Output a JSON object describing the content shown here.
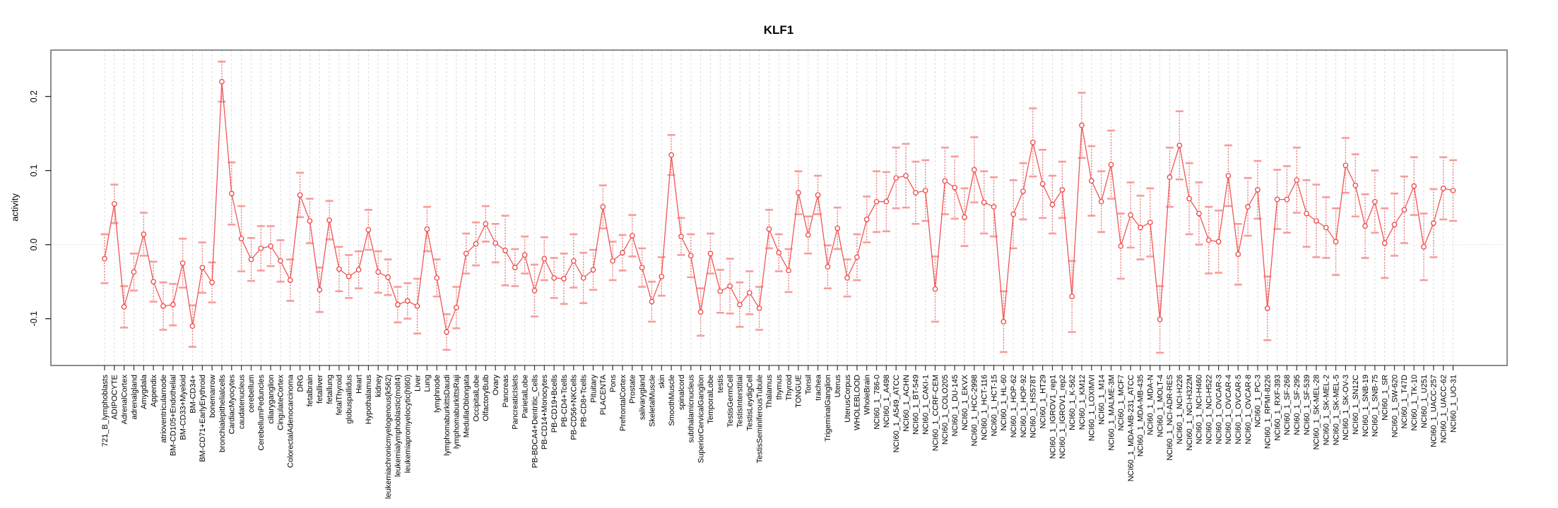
{
  "page": {
    "background": "#ffffff"
  },
  "chart_data": {
    "type": "line",
    "title": "KLF1",
    "xlabel": "",
    "ylabel": "activity",
    "ylim": [
      -0.163,
      0.263
    ],
    "yticks": [
      -0.1,
      0.0,
      0.1,
      0.2
    ],
    "ytick_labels": [
      "-0.1",
      "0.0",
      "0.1",
      "0.2"
    ],
    "grid": "vertical dashed line at every category; dotted horizontal line at y=0",
    "legend": "none",
    "marker": "open-circle",
    "series_color": "#f25555",
    "errorbar_color": "#f79c9c",
    "box_color": "#7f7f7f",
    "categories": [
      "721_B_lymphoblasts",
      "ADIPOCYTE",
      "AdrenalCortex",
      "adrenalgland",
      "Amygdala",
      "Appendix",
      "atrioventricularnode",
      "BM-CD105+Endothelial",
      "BM-CD33+Myeloid",
      "BM-CD34+",
      "BM-CD71+EarlyErythroid",
      "bonemarrow",
      "bronchialepithelialcells",
      "CardiacMyocytes",
      "caudatenucleus",
      "cerebellum",
      "CerebellumPeduncles",
      "ciliaryganglion",
      "CingulateCortex",
      "ColorectalAdenocarcinoma",
      "DRG",
      "fetalbrain",
      "fetalliver",
      "fetallung",
      "fetalThyroid",
      "globuspallidus",
      "Heart",
      "Hypothalamus",
      "kidney",
      "leukemiachronicmyelogenous(k562)",
      "leukemialymphoblastic(molt4)",
      "leukemiapromyelocytic(hl60)",
      "Liver",
      "Lung",
      "lymphnode",
      "lymphomaburkittsDaudi",
      "lymphomaburkittsRaji",
      "MedullaOblongata",
      "OccipitalLobe",
      "OlfactoryBulb",
      "Ovary",
      "Pancreas",
      "PancreaticIslets",
      "ParietalLobe",
      "PB-BDCA4+Dentritic_Cells",
      "PB-CD14+Monocytes",
      "PB-CD19+Bcells",
      "PB-CD4+Tcells",
      "PB-CD56+NKCells",
      "PB-CD8+Tcells",
      "Pituitary",
      "PLACENTA",
      "Pons",
      "PrefrontalCortex",
      "Prostate",
      "salivarygland",
      "SkeletalMuscle",
      "skin",
      "SmoothMuscle",
      "spinalcord",
      "subthalamicnucleus",
      "SuperiorCervicalGanglion",
      "TemporalLobe",
      "testis",
      "TestisGermCell",
      "TestisInterstitial",
      "TestisLeydigCell",
      "TestisSeminiferousTubule",
      "Thalamus",
      "thymus",
      "Thyroid",
      "TONGUE",
      "Tonsil",
      "trachea",
      "TrigeminalGanglion",
      "Uterus",
      "UterusCorpus",
      "WHOLEBLOOD",
      "WholeBrain",
      "NCI60_1_786-0",
      "NCI60_1_A498",
      "NCI60_1_A549_ATCC",
      "NCI60_1_ACHN",
      "NCI60_1_BT-549",
      "NCI60_1_CAKI-1",
      "NCI60_1_CCRF-CEM",
      "NCI60_1_COLO205",
      "NCI60_1_DU-145",
      "NCI60_1_EKVX",
      "NCI60_1_HCC-2998",
      "NCI60_1_HCT-116",
      "NCI60_1_HCT-15",
      "NCI60_1_HL-60",
      "NCI60_1_HOP-62",
      "NCI60_1_HOP-92",
      "NCI60_1_HS578T",
      "NCI60_1_HT29",
      "NCI60_1_IGROV1_rep1",
      "NCI60_1_IGROV1_rep2",
      "NCI60_1_K-562",
      "NCI60_1_KM12",
      "NCI60_1_LOXIMVI",
      "NCI60_1_M14",
      "NCI60_1_MALME-3M",
      "NCI60_1_MCF7",
      "NCI60_1_MDA-MB-231_ATCC",
      "NCI60_1_MDA-MB-435",
      "NCI60_1_MDA-N",
      "NCI60_1_MOLT-4",
      "NCI60_1_NCI-ADR-RES",
      "NCI60_1_NCI-H226",
      "NCI60_1_NCI-H322M",
      "NCI60_1_NCI-H460",
      "NCI60_1_NCI-H522",
      "NCI60_1_OVCAR-3",
      "NCI60_1_OVCAR-4",
      "NCI60_1_OVCAR-5",
      "NCI60_1_OVCAR-8",
      "NCI60_1_PC-3",
      "NCI60_1_RPMI-8226",
      "NCI60_1_RXF-393",
      "NCI60_1_SF-268",
      "NCI60_1_SF-295",
      "NCI60_1_SF-539",
      "NCI60_1_SK-MEL-28",
      "NCI60_1_SK-MEL-2",
      "NCI60_1_SK-MEL-5",
      "NCI60_1_SK-OV-3",
      "NCI60_1_SN12C",
      "NCI60_1_SNB-19",
      "NCI60_1_SNB-75",
      "NCI60_1_SR",
      "NCI60_1_SW-620",
      "NCI60_1_T47D",
      "NCI60_1_TK-10",
      "NCI60_1_U251",
      "NCI60_1_UACC-257",
      "NCI60_1_UACC-62",
      "NCI60_1_UO-31"
    ],
    "series": [
      {
        "name": "activity",
        "values": [
          -0.019,
          0.055,
          -0.084,
          -0.037,
          0.014,
          -0.05,
          -0.083,
          -0.081,
          -0.025,
          -0.11,
          -0.031,
          -0.051,
          0.22,
          0.069,
          0.008,
          -0.02,
          -0.005,
          -0.002,
          -0.022,
          -0.048,
          0.067,
          0.032,
          -0.061,
          0.033,
          -0.033,
          -0.043,
          -0.034,
          0.02,
          -0.037,
          -0.044,
          -0.081,
          -0.076,
          -0.083,
          0.021,
          -0.045,
          -0.118,
          -0.085,
          -0.012,
          0.001,
          0.028,
          0.002,
          -0.008,
          -0.031,
          -0.014,
          -0.062,
          -0.019,
          -0.045,
          -0.046,
          -0.022,
          -0.045,
          -0.034,
          0.051,
          -0.022,
          -0.011,
          0.012,
          -0.031,
          -0.077,
          -0.043,
          0.121,
          0.011,
          -0.015,
          -0.091,
          -0.012,
          -0.063,
          -0.056,
          -0.081,
          -0.065,
          -0.086,
          0.021,
          -0.011,
          -0.035,
          0.07,
          0.013,
          0.067,
          -0.03,
          0.022,
          -0.045,
          -0.017,
          0.034,
          0.058,
          0.058,
          0.09,
          0.093,
          0.07,
          0.073,
          -0.06,
          0.086,
          0.077,
          0.037,
          0.101,
          0.057,
          0.051,
          -0.104,
          0.041,
          0.072,
          0.138,
          0.082,
          0.054,
          0.074,
          -0.07,
          0.161,
          0.086,
          0.058,
          0.108,
          -0.002,
          0.04,
          0.023,
          0.03,
          -0.101,
          0.091,
          0.134,
          0.062,
          0.042,
          0.006,
          0.004,
          0.093,
          -0.013,
          0.051,
          0.074,
          -0.086,
          0.061,
          0.061,
          0.087,
          0.042,
          0.032,
          0.023,
          0.004,
          0.107,
          0.08,
          0.025,
          0.058,
          0.002,
          0.027,
          0.047,
          0.079,
          -0.003,
          0.029,
          0.076,
          0.073
        ],
        "stderr": [
          0.033,
          0.026,
          0.028,
          0.025,
          0.029,
          0.027,
          0.032,
          0.028,
          0.033,
          0.028,
          0.034,
          0.027,
          0.027,
          0.042,
          0.044,
          0.029,
          0.03,
          0.027,
          0.028,
          0.028,
          0.03,
          0.03,
          0.03,
          0.026,
          0.03,
          0.029,
          0.025,
          0.027,
          0.028,
          0.024,
          0.024,
          0.024,
          0.037,
          0.03,
          0.025,
          0.024,
          0.028,
          0.027,
          0.029,
          0.024,
          0.026,
          0.047,
          0.025,
          0.025,
          0.035,
          0.029,
          0.027,
          0.034,
          0.036,
          0.034,
          0.027,
          0.029,
          0.026,
          0.024,
          0.028,
          0.026,
          0.027,
          0.026,
          0.027,
          0.025,
          0.029,
          0.032,
          0.027,
          0.029,
          0.037,
          0.03,
          0.029,
          0.029,
          0.026,
          0.025,
          0.029,
          0.029,
          0.025,
          0.026,
          0.029,
          0.028,
          0.025,
          0.031,
          0.031,
          0.041,
          0.04,
          0.041,
          0.043,
          0.042,
          0.041,
          0.044,
          0.045,
          0.042,
          0.039,
          0.044,
          0.042,
          0.04,
          0.041,
          0.046,
          0.038,
          0.046,
          0.046,
          0.039,
          0.038,
          0.048,
          0.044,
          0.047,
          0.041,
          0.046,
          0.044,
          0.044,
          0.043,
          0.046,
          0.045,
          0.04,
          0.046,
          0.048,
          0.042,
          0.045,
          0.042,
          0.041,
          0.041,
          0.039,
          0.039,
          0.043,
          0.04,
          0.045,
          0.044,
          0.045,
          0.049,
          0.041,
          0.045,
          0.037,
          0.042,
          0.043,
          0.042,
          0.047,
          0.042,
          0.045,
          0.039,
          0.045,
          0.046,
          0.042,
          0.041
        ]
      }
    ]
  }
}
